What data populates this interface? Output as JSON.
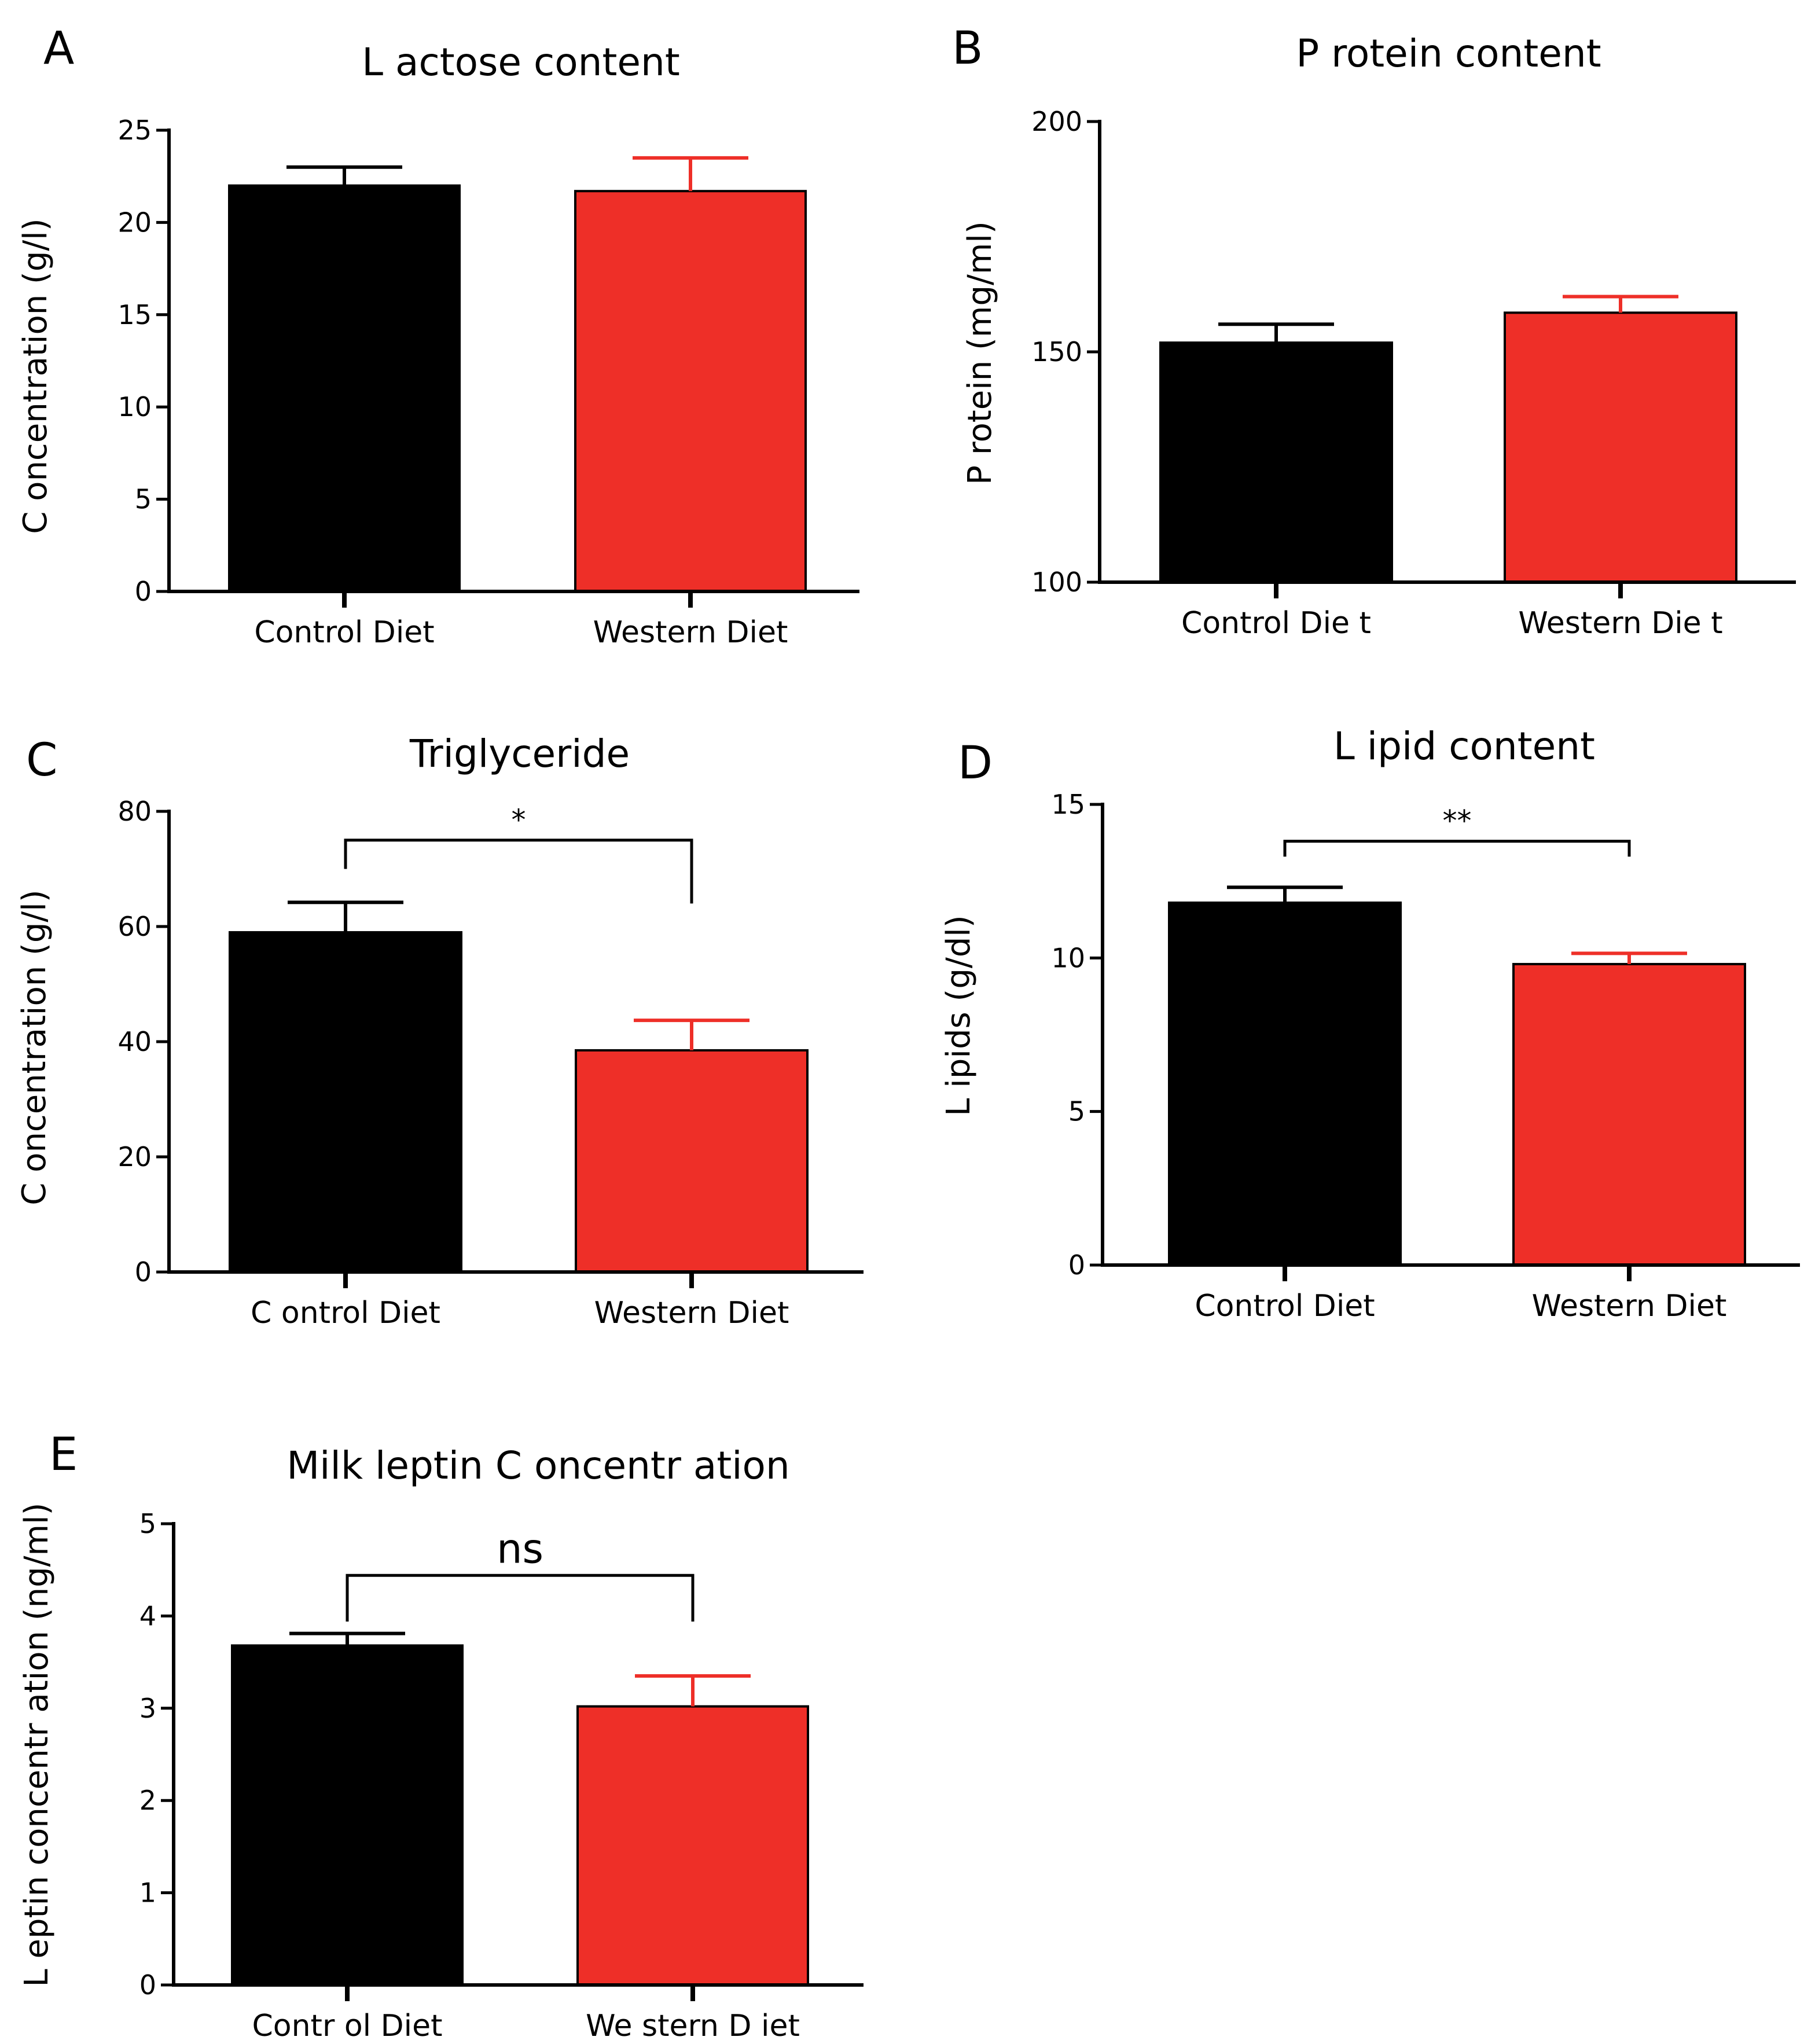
{
  "colors": {
    "control": "#000000",
    "western": "#ee2f28",
    "axis": "#000000"
  },
  "chart_data": [
    {
      "panel": "A",
      "type": "bar",
      "title": "L actose content",
      "ylabel": "C oncentration  (g/l)",
      "xlabel": "",
      "categories": [
        "Control  Diet",
        "Western  Diet"
      ],
      "values": [
        22.0,
        21.7
      ],
      "errors": [
        1.0,
        1.8
      ],
      "ylim": [
        0,
        25
      ],
      "yticks": [
        0,
        5,
        10,
        15,
        20,
        25
      ],
      "significance": null
    },
    {
      "panel": "B",
      "type": "bar",
      "title": "P rotein content",
      "ylabel": "P rotein (mg/ml)",
      "xlabel": "",
      "categories": [
        "Control Die t",
        "Western Die t"
      ],
      "values": [
        152,
        158.5
      ],
      "errors": [
        4,
        3.5
      ],
      "ylim": [
        100,
        200
      ],
      "yticks": [
        100,
        150,
        200
      ],
      "significance": null
    },
    {
      "panel": "C",
      "type": "bar",
      "title": "Triglyceride",
      "ylabel": "C oncentration (g/l)",
      "xlabel": "",
      "categories": [
        "C ontrol Diet",
        "Western  Diet"
      ],
      "values": [
        59,
        38.5
      ],
      "errors": [
        5.2,
        5.2
      ],
      "ylim": [
        0,
        80
      ],
      "yticks": [
        0,
        20,
        40,
        60,
        80
      ],
      "significance": {
        "label": "*",
        "bracket_y": 75,
        "left_drop": 70,
        "right_drop": 64
      }
    },
    {
      "panel": "D",
      "type": "bar",
      "title": "L ipid content",
      "ylabel": "L ipids (g/dl)",
      "xlabel": "",
      "categories": [
        "Control  Diet",
        "Western  Diet"
      ],
      "values": [
        11.8,
        9.8
      ],
      "errors": [
        0.5,
        0.35
      ],
      "ylim": [
        0,
        15
      ],
      "yticks": [
        0,
        5,
        10,
        15
      ],
      "significance": {
        "label": "**",
        "bracket_y": 13.8,
        "left_drop": 13.3,
        "right_drop": 13.3
      }
    },
    {
      "panel": "E",
      "type": "bar",
      "title": "Milk leptin C oncentr ation",
      "ylabel": "L eptin concentr ation (ng/ml)",
      "xlabel": "",
      "categories": [
        "Contr ol Diet",
        "We stern D iet"
      ],
      "values": [
        3.68,
        3.02
      ],
      "errors": [
        0.13,
        0.33
      ],
      "ylim": [
        0,
        5
      ],
      "yticks": [
        0,
        1,
        2,
        3,
        4,
        5
      ],
      "significance": {
        "label": "ns",
        "bracket_y": 4.44,
        "left_drop": 3.94,
        "right_drop": 3.94
      }
    }
  ]
}
